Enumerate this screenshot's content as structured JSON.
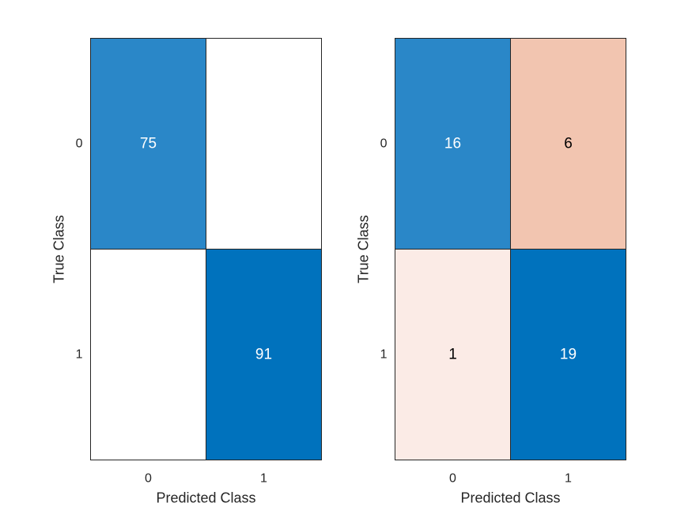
{
  "chart_data": [
    {
      "type": "heatmap",
      "title": "",
      "xlabel": "Predicted Class",
      "ylabel": "True Class",
      "x_categories": [
        "0",
        "1"
      ],
      "y_categories": [
        "0",
        "1"
      ],
      "values": [
        [
          75,
          null
        ],
        [
          null,
          91
        ]
      ],
      "cell_labels": [
        [
          "75",
          ""
        ],
        [
          "",
          "91"
        ]
      ],
      "cell_colors": [
        [
          "#2a87c8",
          "#ffffff"
        ],
        [
          "#ffffff",
          "#0072bd"
        ]
      ],
      "label_colors": [
        [
          "#ffffff",
          "#000000"
        ],
        [
          "#000000",
          "#ffffff"
        ]
      ]
    },
    {
      "type": "heatmap",
      "title": "",
      "xlabel": "Predicted Class",
      "ylabel": "True Class",
      "x_categories": [
        "0",
        "1"
      ],
      "y_categories": [
        "0",
        "1"
      ],
      "values": [
        [
          16,
          6
        ],
        [
          1,
          19
        ]
      ],
      "cell_labels": [
        [
          "16",
          "6"
        ],
        [
          "1",
          "19"
        ]
      ],
      "cell_colors": [
        [
          "#2a87c8",
          "#f2c5b0"
        ],
        [
          "#fbebe6",
          "#0072bd"
        ]
      ],
      "label_colors": [
        [
          "#ffffff",
          "#000000"
        ],
        [
          "#000000",
          "#ffffff"
        ]
      ]
    }
  ]
}
